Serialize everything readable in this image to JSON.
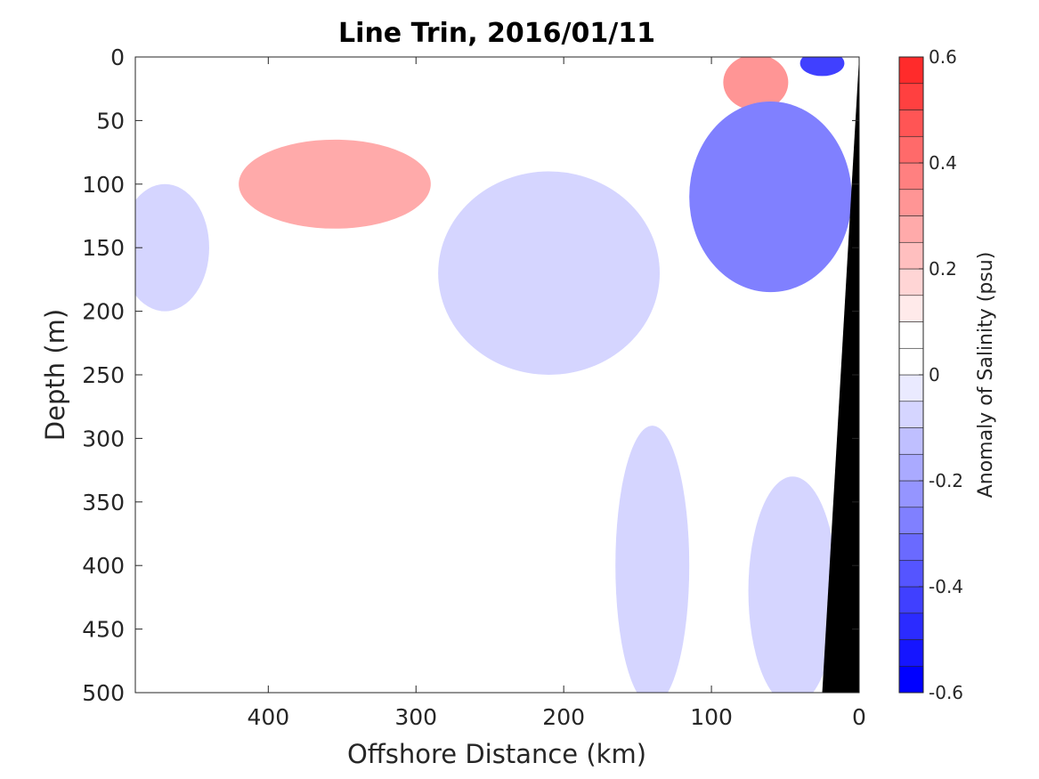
{
  "chart_data": {
    "type": "heatmap",
    "title": "Line Trin, 2016/01/11",
    "xlabel": "Offshore Distance (km)",
    "ylabel": "Depth (m)",
    "xlim": [
      490,
      0
    ],
    "ylim": [
      0,
      500
    ],
    "x_ticks": [
      400,
      300,
      200,
      100,
      0
    ],
    "x_tick_labels": [
      "400",
      "300",
      "200",
      "100",
      "0"
    ],
    "y_ticks": [
      0,
      50,
      100,
      150,
      200,
      250,
      300,
      350,
      400,
      450,
      500
    ],
    "y_tick_labels": [
      "0",
      "50",
      "100",
      "150",
      "200",
      "250",
      "300",
      "350",
      "400",
      "450",
      "500"
    ],
    "colorbar": {
      "label": "Anomaly of Salinity (psu)",
      "range": [
        -0.6,
        0.6
      ],
      "step": 0.05,
      "ticks": [
        0.6,
        0.4,
        0.2,
        0,
        -0.2,
        -0.4,
        -0.6
      ],
      "tick_labels": [
        "0.6",
        "0.4",
        "0.2",
        "0",
        "-0.2",
        "-0.4",
        "-0.6"
      ],
      "colors": [
        "#0000ff",
        "#1515ff",
        "#2b2bff",
        "#4040ff",
        "#5555ff",
        "#6a6aff",
        "#8080ff",
        "#9595ff",
        "#aaaaff",
        "#bfbfff",
        "#d5d5ff",
        "#eaeaff",
        "#ffffff",
        "#ffffff",
        "#ffeaea",
        "#ffd5d5",
        "#ffbfbf",
        "#ffaaaa",
        "#ff9595",
        "#ff8080",
        "#ff6a6a",
        "#ff5555",
        "#ff4040",
        "#ff2b2b",
        "#ff1515",
        "#ff0000"
      ]
    },
    "anomaly_regions": [
      {
        "kind": "positive",
        "level": 0.1,
        "x_center": 355,
        "depth_center": 100,
        "x_halfwidth": 110,
        "depth_halfwidth": 60
      },
      {
        "kind": "positive",
        "level": 0.25,
        "x_center": 355,
        "depth_center": 100,
        "x_halfwidth": 65,
        "depth_halfwidth": 35
      },
      {
        "kind": "positive",
        "level": 0.05,
        "x_center": 130,
        "depth_center": 15,
        "x_halfwidth": 100,
        "depth_halfwidth": 25
      },
      {
        "kind": "positive",
        "level": 0.35,
        "x_center": 70,
        "depth_center": 20,
        "x_halfwidth": 22,
        "depth_halfwidth": 22
      },
      {
        "kind": "negative",
        "level": -0.1,
        "x_center": 210,
        "depth_center": 170,
        "x_halfwidth": 75,
        "depth_halfwidth": 80
      },
      {
        "kind": "negative",
        "level": -0.25,
        "x_center": 60,
        "depth_center": 110,
        "x_halfwidth": 55,
        "depth_halfwidth": 75
      },
      {
        "kind": "negative",
        "level": -0.4,
        "x_center": 25,
        "depth_center": 5,
        "x_halfwidth": 15,
        "depth_halfwidth": 10
      },
      {
        "kind": "negative",
        "level": -0.05,
        "x_center": 140,
        "depth_center": 400,
        "x_halfwidth": 25,
        "depth_halfwidth": 110
      },
      {
        "kind": "negative",
        "level": -0.1,
        "x_center": 470,
        "depth_center": 150,
        "x_halfwidth": 30,
        "depth_halfwidth": 50
      },
      {
        "kind": "negative",
        "level": -0.05,
        "x_center": 45,
        "depth_center": 420,
        "x_halfwidth": 30,
        "depth_halfwidth": 90
      }
    ],
    "bathymetry": {
      "surface_depth": 0,
      "at_x0_depth": 0,
      "edge_x_at_500m": 25,
      "color": "#000000"
    }
  }
}
